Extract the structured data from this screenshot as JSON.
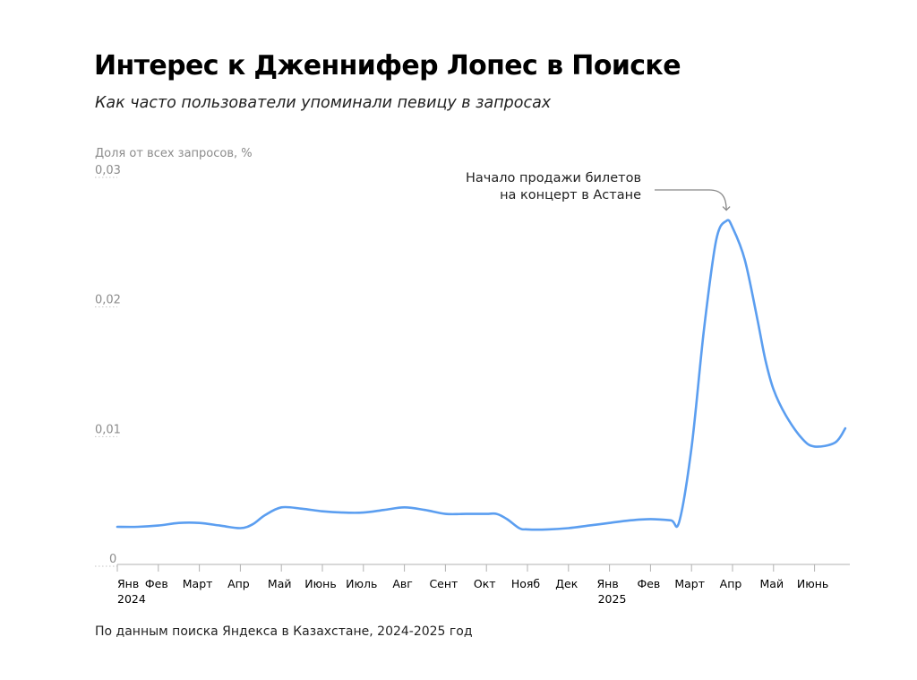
{
  "title": "Интерес к Дженнифер Лопес в Поиске",
  "subtitle": "Как часто пользователи упоминали певицу в запросах",
  "source": "По данным поиска Яндекса в Казахстане, 2024-2025 год",
  "chart_data": {
    "type": "line",
    "ylabel": "Доля от всех запросов, %",
    "ylim": [
      0,
      0.03
    ],
    "ytick_values": [
      0,
      0.01,
      0.02,
      0.03
    ],
    "ytick_labels": [
      "0",
      "0,01",
      "0,02",
      "0,03"
    ],
    "grid": false,
    "months": [
      {
        "label": "Янв",
        "year": "2024"
      },
      {
        "label": "Фев",
        "year": ""
      },
      {
        "label": "Март",
        "year": ""
      },
      {
        "label": "Апр",
        "year": ""
      },
      {
        "label": "Май",
        "year": ""
      },
      {
        "label": "Июнь",
        "year": ""
      },
      {
        "label": "Июль",
        "year": ""
      },
      {
        "label": "Авг",
        "year": ""
      },
      {
        "label": "Сент",
        "year": ""
      },
      {
        "label": "Окт",
        "year": ""
      },
      {
        "label": "Нояб",
        "year": ""
      },
      {
        "label": "Дек",
        "year": ""
      },
      {
        "label": "Янв",
        "year": "2025"
      },
      {
        "label": "Фев",
        "year": ""
      },
      {
        "label": "Март",
        "year": ""
      },
      {
        "label": "Апр",
        "year": ""
      },
      {
        "label": "Май",
        "year": ""
      },
      {
        "label": "Июнь",
        "year": ""
      }
    ],
    "series": [
      {
        "color": "#5b9ef0",
        "x": [
          0,
          0.5,
          1,
          1.5,
          2,
          2.5,
          3,
          3.3,
          3.6,
          4,
          4.5,
          5,
          5.5,
          6,
          6.5,
          7,
          7.5,
          8,
          8.5,
          9,
          9.25,
          9.5,
          9.8,
          10,
          10.5,
          11,
          11.5,
          12,
          12.5,
          13,
          13.5,
          13.7,
          14,
          14.3,
          14.6,
          14.85,
          15,
          15.3,
          15.6,
          15.8,
          16,
          16.3,
          16.7,
          17,
          17.5,
          17.75
        ],
        "y": [
          0.0029,
          0.0029,
          0.003,
          0.0032,
          0.0032,
          0.003,
          0.0028,
          0.0031,
          0.0038,
          0.0044,
          0.0043,
          0.0041,
          0.004,
          0.004,
          0.0042,
          0.0044,
          0.0042,
          0.0039,
          0.0039,
          0.0039,
          0.0039,
          0.0035,
          0.0028,
          0.0027,
          0.0027,
          0.0028,
          0.003,
          0.0032,
          0.0034,
          0.0035,
          0.0034,
          0.0033,
          0.009,
          0.018,
          0.025,
          0.0265,
          0.026,
          0.0235,
          0.019,
          0.0158,
          0.0135,
          0.0115,
          0.0097,
          0.0091,
          0.0094,
          0.0105
        ]
      }
    ],
    "annotation": {
      "lines": [
        "Начало продажи билетов",
        "на концерт в Астане"
      ],
      "x": 14.85,
      "y": 0.0265
    }
  }
}
